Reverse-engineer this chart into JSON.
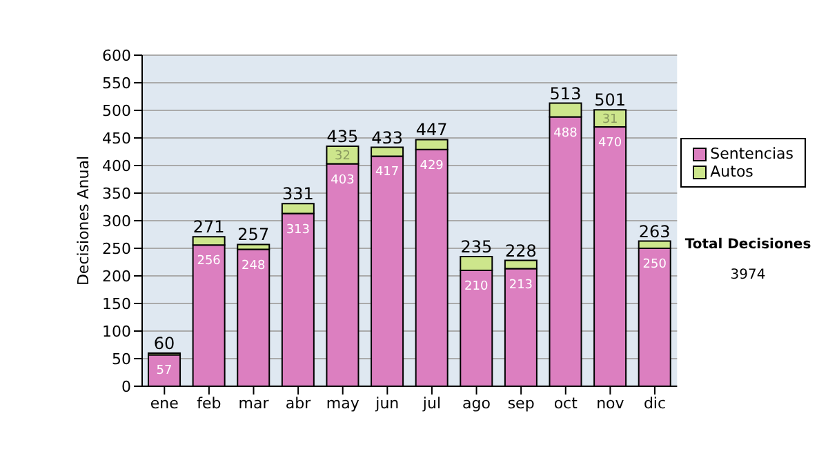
{
  "chart_data": {
    "type": "bar",
    "stacked": true,
    "ylabel": "Decisiones Anual",
    "categories": [
      "ene",
      "feb",
      "mar",
      "abr",
      "may",
      "jun",
      "jul",
      "ago",
      "sep",
      "oct",
      "nov",
      "dic"
    ],
    "series": [
      {
        "name": "Sentencias",
        "color": "#dc7fc0",
        "values": [
          57,
          256,
          248,
          313,
          403,
          417,
          429,
          210,
          213,
          488,
          470,
          250
        ],
        "value_labels": [
          "57",
          "256",
          "248",
          "313",
          "403",
          "417",
          "429",
          "210",
          "213",
          "488",
          "470",
          "250"
        ]
      },
      {
        "name": "Autos",
        "color": "#cde68c",
        "values": [
          3,
          15,
          9,
          18,
          32,
          16,
          18,
          25,
          15,
          25,
          31,
          13
        ],
        "value_labels": [
          null,
          null,
          null,
          null,
          "32",
          null,
          null,
          null,
          null,
          null,
          "31",
          null
        ]
      }
    ],
    "totals": [
      "60",
      "271",
      "257",
      "331",
      "435",
      "433",
      "447",
      "235",
      "228",
      "513",
      "501",
      "263"
    ],
    "ylim": [
      0,
      600
    ],
    "yticks": [
      0,
      50,
      100,
      150,
      200,
      250,
      300,
      350,
      400,
      450,
      500,
      550,
      600
    ],
    "grid": "y",
    "legend": "right",
    "annotations": [
      "Total Decisiones",
      "3974"
    ]
  }
}
